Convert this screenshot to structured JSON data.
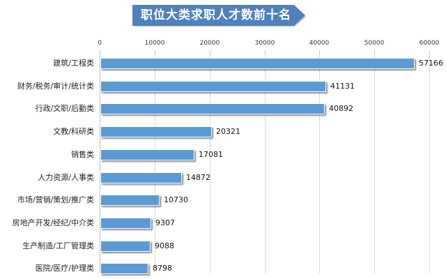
{
  "title": "职位大类求职人才数前十名",
  "colors": {
    "bar": "#5B9BD5",
    "banner": "#4F81BD",
    "gridline": "#d9d9d9"
  },
  "axis": {
    "ticks": [
      "0",
      "10000",
      "20000",
      "30000",
      "40000",
      "50000",
      "60000"
    ]
  },
  "chart_data": {
    "type": "bar",
    "orientation": "horizontal",
    "title": "职位大类求职人才数前十名",
    "xlabel": "",
    "ylabel": "",
    "xlim": [
      0,
      60000
    ],
    "grid": true,
    "legend": null,
    "categories": [
      "建筑/工程类",
      "财务/税务/审计/统计类",
      "行政/文职/后勤类",
      "文教/科研类",
      "销售类",
      "人力资源/人事类",
      "市场/营销/策划/推广类",
      "房地产开发/经纪/中介类",
      "生产制造/工厂管理类",
      "医院/医疗/护理类"
    ],
    "values": [
      57166,
      41131,
      40892,
      20321,
      17081,
      14872,
      10730,
      9307,
      9088,
      8798
    ],
    "value_labels": [
      "57166",
      "41131",
      "40892",
      "20321",
      "17081",
      "14872",
      "10730",
      "9307",
      "9088",
      "8798"
    ]
  }
}
